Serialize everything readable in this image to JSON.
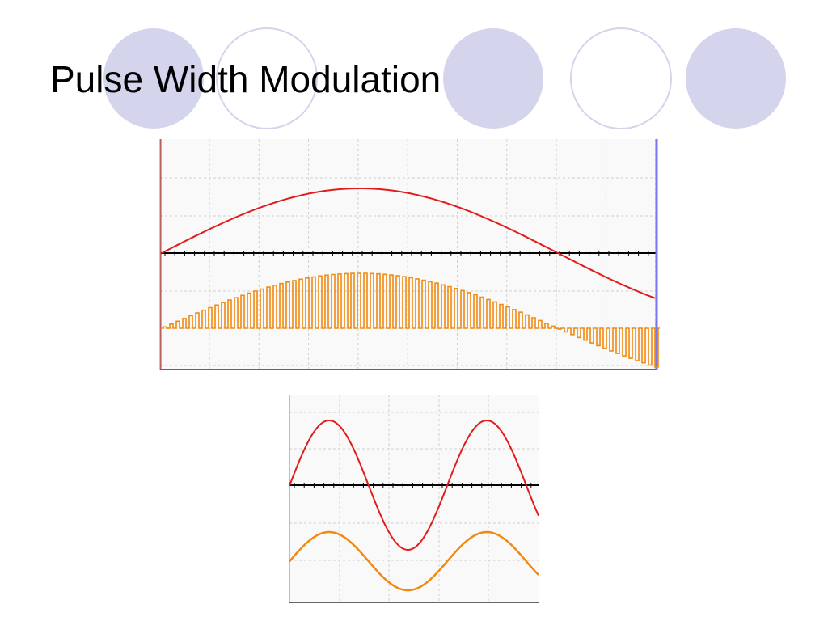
{
  "slide": {
    "title": "Pulse Width Modulation"
  }
}
